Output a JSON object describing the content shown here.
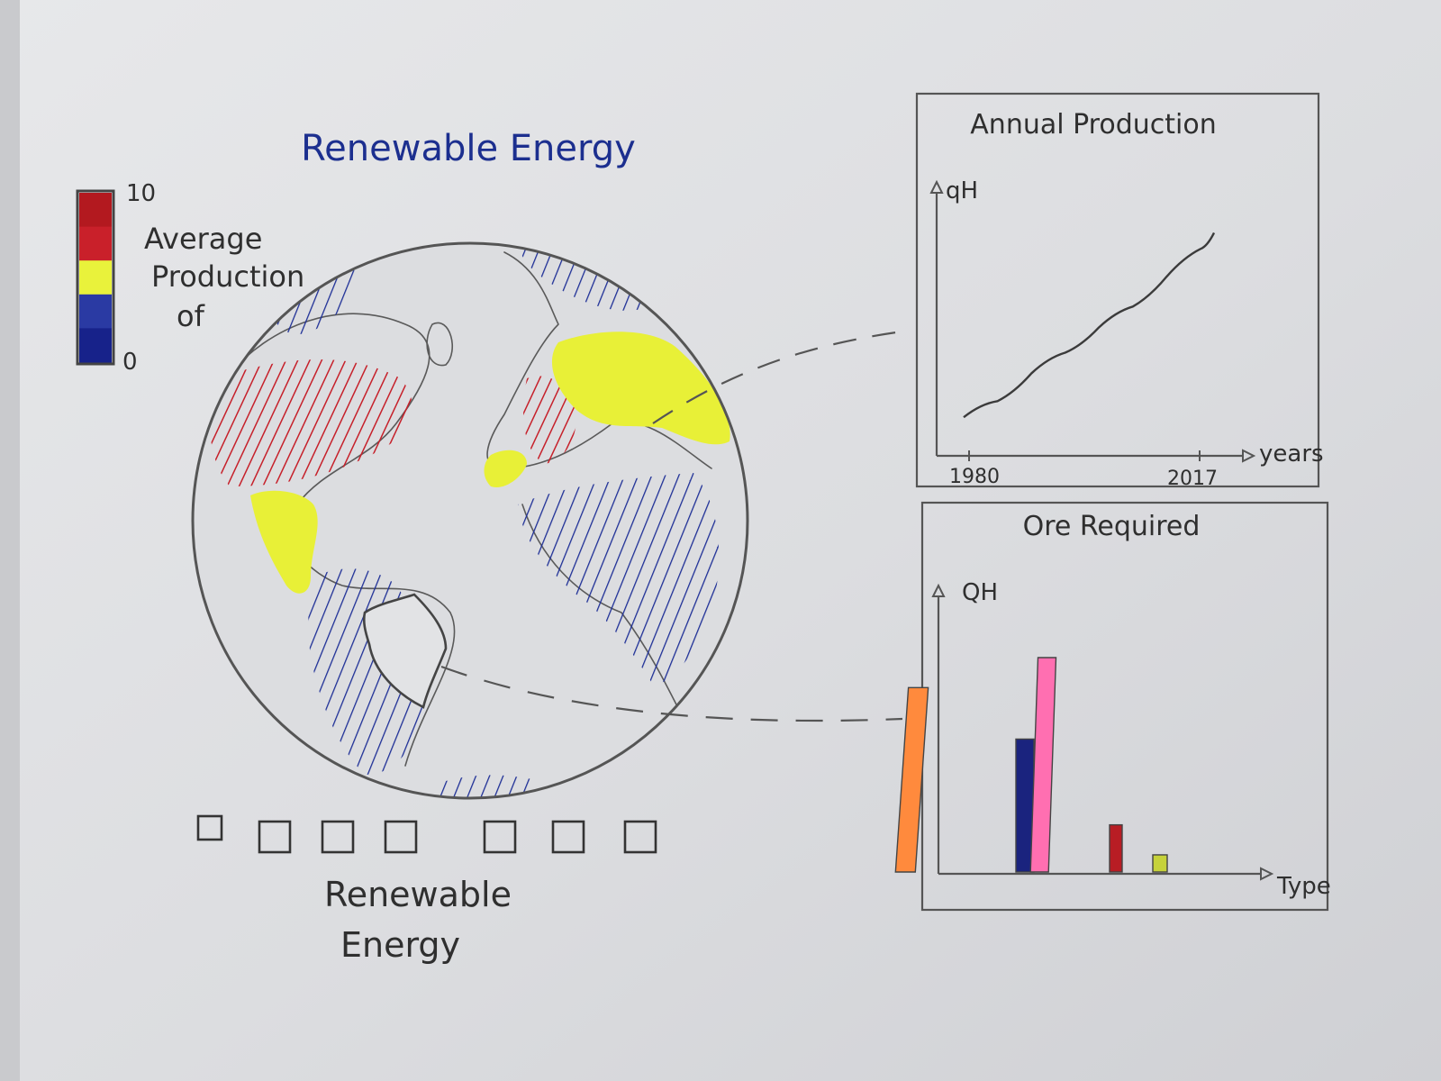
{
  "title": "Renewable Energy",
  "legend": {
    "max_label": "10",
    "min_label": "0",
    "label_lines": [
      "Average",
      "Production",
      "of"
    ],
    "colors": [
      "#b3191f",
      "#c9202a",
      "#e9f23b",
      "#2a3aa3",
      "#17228a"
    ]
  },
  "map": {
    "regions": {
      "red": "#c6202a",
      "yellow": "#e8f037",
      "blue": "#1e2f96"
    }
  },
  "selector": {
    "boxes": [
      "",
      "",
      "",
      "",
      "",
      "",
      ""
    ],
    "label_lines": [
      "Renewable",
      "Energy"
    ]
  },
  "chart_data": [
    {
      "type": "line",
      "title": "Annual Production",
      "ylabel": "qH",
      "xlabel": "years",
      "x_ticks": [
        "1980",
        "2017"
      ],
      "x": [
        1980,
        1985,
        1990,
        1995,
        2000,
        2005,
        2010,
        2015,
        2017
      ],
      "values": [
        0.05,
        0.12,
        0.24,
        0.33,
        0.44,
        0.53,
        0.66,
        0.78,
        0.85
      ]
    },
    {
      "type": "bar",
      "title": "Ore Required",
      "ylabel": "QH",
      "xlabel": "Type",
      "values": [
        0.86,
        0.62,
        1.0,
        0.22,
        0.08
      ],
      "colors": [
        "#ff8a3d",
        "#1a237e",
        "#ff6fb1",
        "#b81d24",
        "#c6d23a"
      ]
    }
  ]
}
